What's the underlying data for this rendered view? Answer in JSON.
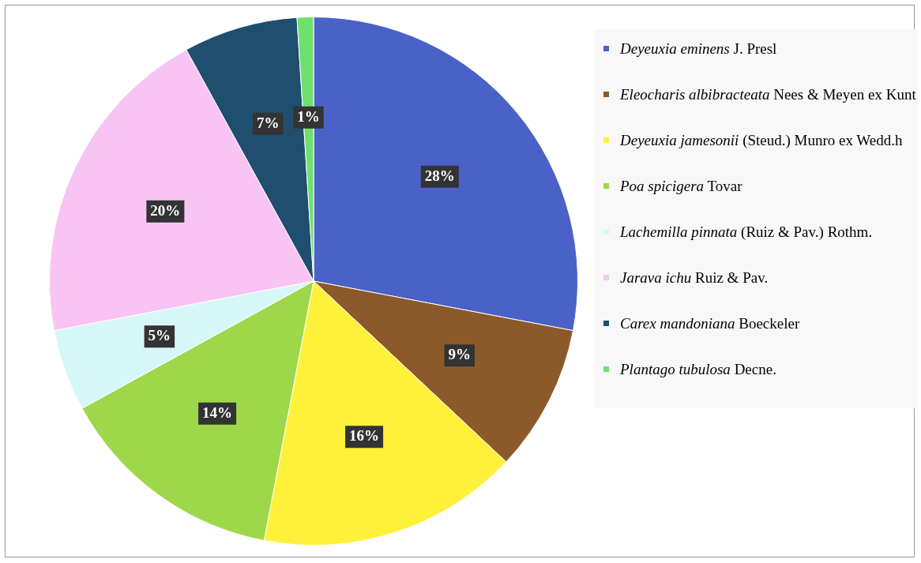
{
  "chart_data": {
    "type": "pie",
    "categories": [
      "Deyeuxia eminens J. Presl",
      "Eleocharis albibracteata Nees & Meyen ex Kunt",
      "Deyeuxia jamesonii (Steud.) Munro ex Wedd.h",
      "Poa spicigera Tovar",
      "Lachemilla pinnata (Ruiz & Pav.) Rothm.",
      "Jarava ichu Ruiz & Pav.",
      "Carex mandoniana Boeckeler",
      "Plantago tubulosa Decne."
    ],
    "values": [
      28,
      9,
      16,
      14,
      5,
      20,
      7,
      1
    ],
    "colors": [
      "#4a62c8",
      "#8c5a2a",
      "#fff03a",
      "#9ed84a",
      "#d6f7f7",
      "#f8c4f4",
      "#1f4e6e",
      "#6ee06e"
    ],
    "value_labels": [
      "28%",
      "9%",
      "16%",
      "14%",
      "5%",
      "20%",
      "7%",
      "1%"
    ],
    "legend": "right"
  }
}
